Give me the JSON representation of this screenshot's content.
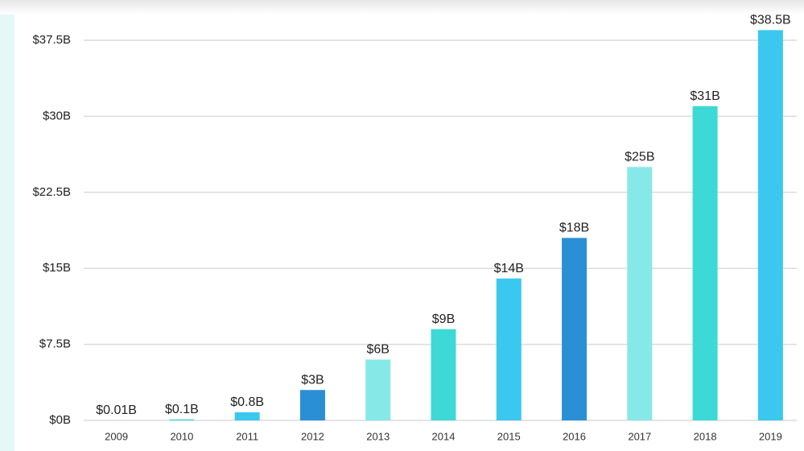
{
  "chart_data": {
    "type": "bar",
    "categories": [
      "2009",
      "2010",
      "2011",
      "2012",
      "2013",
      "2014",
      "2015",
      "2016",
      "2017",
      "2018",
      "2019"
    ],
    "values": [
      0.01,
      0.1,
      0.8,
      3,
      6,
      9,
      14,
      18,
      25,
      31,
      38.5
    ],
    "value_labels": [
      "$0.01B",
      "$0.1B",
      "$0.8B",
      "$3B",
      "$6B",
      "$9B",
      "$14B",
      "$18B",
      "$25B",
      "$31B",
      "$38.5B"
    ],
    "colors": [
      "#87e8e8",
      "#3dd9d6",
      "#3ac8ef",
      "#2b8fd6",
      "#87e8e8",
      "#3dd9d6",
      "#3ac8ef",
      "#2b8fd6",
      "#87e8e8",
      "#3dd9d6",
      "#3ac8ef"
    ],
    "ylim": [
      0,
      40
    ],
    "yticks": [
      {
        "value": 0,
        "label": "$0B"
      },
      {
        "value": 7.5,
        "label": "$7.5B"
      },
      {
        "value": 15,
        "label": "$15B"
      },
      {
        "value": 22.5,
        "label": "$22.5B"
      },
      {
        "value": 30,
        "label": "$30B"
      },
      {
        "value": 37.5,
        "label": "$37.5B"
      }
    ],
    "grid": true
  }
}
